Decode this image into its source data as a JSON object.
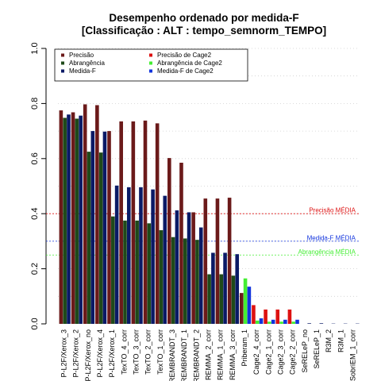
{
  "chart_data": {
    "type": "bar",
    "title": "Desempenho ordenado por medida-F",
    "subtitle": "[Classificação : ALT : tempo_semnorm_TEMPO]",
    "xlabel": "",
    "ylabel": "",
    "ylim": [
      0,
      1.0
    ],
    "yticks": [
      "0.0",
      "0.2",
      "0.4",
      "0.6",
      "0.8",
      "1.0"
    ],
    "grid": "horizontal dotted",
    "legend_position": "top-left",
    "categories": [
      "P-L2F/Xerox_3",
      "P-L2F/Xerox_2",
      "P-L2F/Xerox_no",
      "P-L2F/Xerox_4",
      "P-L2F/Xerox_1",
      "TexTO_4_corr",
      "TexTO_3_corr",
      "TexTO_2_corr",
      "TexTO_1_corr",
      "REMBRANDT_3",
      "REMBRANDT_1",
      "REMBRANDT_2",
      "REMMA_2_corr",
      "REMMA_1_corr",
      "REMMA_3_corr",
      "Priberam_1",
      "Cage2_4_corr",
      "Cage2_1_corr",
      "Cage2_3_corr",
      "Cage2_2_corr",
      "SeRELeP_no",
      "SeRELeP_1",
      "R3M_2",
      "R3M_1",
      "SobriEM_1_corr"
    ],
    "series": [
      {
        "name": "Precisão",
        "color": "#6b1a1a",
        "values": [
          0.775,
          0.768,
          0.797,
          0.794,
          0.7,
          0.735,
          0.735,
          0.738,
          0.728,
          0.602,
          0.585,
          0.405,
          0.455,
          0.455,
          0.458,
          0.112,
          0.0,
          0.0,
          0.0,
          0.0,
          0.0,
          0.0,
          0.0,
          0.0,
          0.0
        ]
      },
      {
        "name": "Abrangência",
        "color": "#1f4a1a",
        "values": [
          0.748,
          0.745,
          0.625,
          0.622,
          0.39,
          0.375,
          0.375,
          0.365,
          0.34,
          0.315,
          0.31,
          0.305,
          0.18,
          0.18,
          0.175,
          0.0,
          0.0,
          0.0,
          0.0,
          0.0,
          0.0,
          0.0,
          0.0,
          0.0,
          0.0
        ]
      },
      {
        "name": "Medida-F",
        "color": "#0a1a66",
        "values": [
          0.76,
          0.756,
          0.7,
          0.698,
          0.502,
          0.496,
          0.496,
          0.488,
          0.465,
          0.412,
          0.405,
          0.35,
          0.258,
          0.258,
          0.253,
          0.0,
          0.0,
          0.0,
          0.0,
          0.0,
          0.002,
          0.002,
          0.001,
          0.001,
          0.001
        ]
      },
      {
        "name": "Precisão  de  Cage2",
        "color": "#dd1111",
        "values": [
          0,
          0,
          0,
          0,
          0,
          0,
          0,
          0,
          0,
          0,
          0,
          0,
          0,
          0,
          0,
          0,
          0.068,
          0.052,
          0.052,
          0.052,
          0,
          0,
          0,
          0,
          0
        ]
      },
      {
        "name": "Abrangência  de  Cage2",
        "color": "#44ee33",
        "values": [
          0,
          0,
          0,
          0,
          0,
          0,
          0,
          0,
          0,
          0,
          0,
          0,
          0,
          0,
          0,
          0.165,
          0.012,
          0.008,
          0.008,
          0.008,
          0,
          0,
          0,
          0,
          0
        ]
      },
      {
        "name": "Medida-F  de  Cage2",
        "color": "#1133dd",
        "values": [
          0,
          0,
          0,
          0,
          0,
          0,
          0,
          0,
          0,
          0,
          0,
          0,
          0,
          0,
          0,
          0.135,
          0.02,
          0.015,
          0.015,
          0.015,
          0,
          0,
          0,
          0,
          0
        ]
      }
    ],
    "reference_lines": [
      {
        "label": "Precisão MÉDIA",
        "value": 0.4,
        "color": "#dd1111"
      },
      {
        "label": "Medida-F MÉDIA",
        "value": 0.3,
        "color": "#1133dd"
      },
      {
        "label": "Abrangência MÉDIA",
        "value": 0.25,
        "color": "#44ee33"
      }
    ]
  }
}
